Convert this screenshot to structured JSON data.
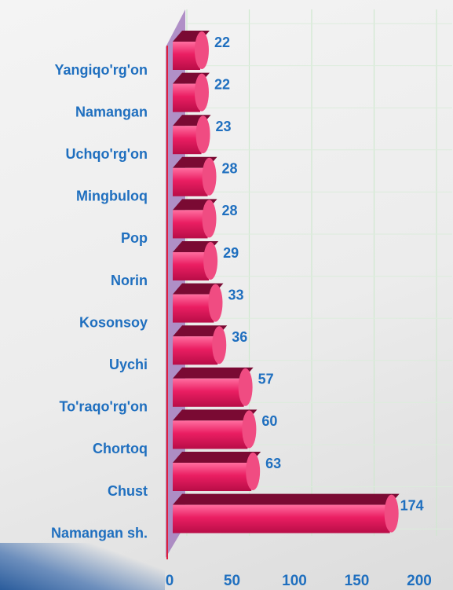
{
  "chart_data": {
    "type": "bar",
    "orientation": "horizontal",
    "categories": [
      "Yangiqo'rg'on",
      "Namangan",
      "Uchqo'rg'on",
      "Mingbuloq",
      "Pop",
      "Norin",
      "Kosonsoy",
      "Uychi",
      "To'raqo'rg'on",
      "Chortoq",
      "Chust",
      "Namangan sh."
    ],
    "values": [
      22,
      22,
      23,
      28,
      28,
      29,
      33,
      36,
      57,
      60,
      63,
      174
    ],
    "color": "#e8185f",
    "xlim": [
      0,
      200
    ],
    "xticks": [
      0,
      50,
      100,
      150,
      200
    ],
    "grid": true
  }
}
